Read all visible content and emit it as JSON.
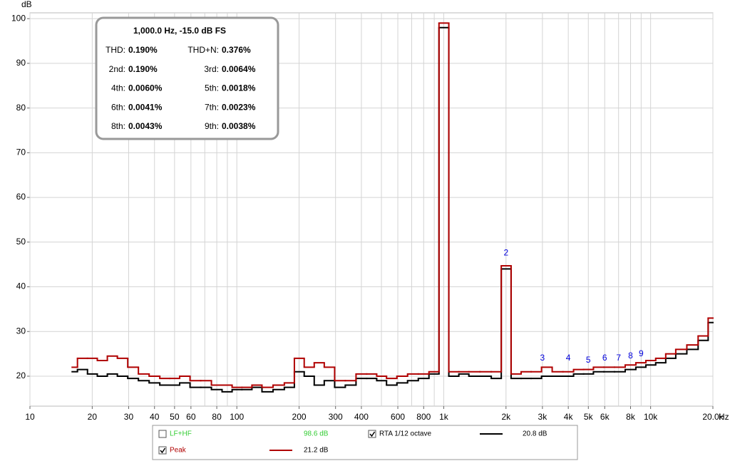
{
  "chart_data": {
    "type": "step",
    "ylabel": "dB",
    "xlabel": "Hz",
    "xscale": "log",
    "grid": true,
    "xlim": [
      10,
      20000
    ],
    "ylim": [
      13.3,
      101.3
    ],
    "yticks": [
      20,
      30,
      40,
      50,
      60,
      70,
      80,
      90,
      100
    ],
    "xticks": [
      10,
      20,
      30,
      40,
      50,
      60,
      80,
      100,
      200,
      300,
      400,
      600,
      800,
      {
        "value": 1000,
        "label": "1k"
      },
      {
        "value": 2000,
        "label": "2k"
      },
      {
        "value": 3000,
        "label": "3k"
      },
      {
        "value": 4000,
        "label": "4k"
      },
      {
        "value": 5000,
        "label": "5k"
      },
      {
        "value": 6000,
        "label": "6k"
      },
      {
        "value": 8000,
        "label": "8k"
      },
      {
        "value": 10000,
        "label": "10k"
      },
      {
        "value": 20000,
        "label": "20.0k"
      }
    ],
    "x_minor_grid": [
      70,
      90,
      500,
      700,
      900,
      7000,
      9000
    ],
    "x": [
      16,
      18,
      20,
      22.4,
      25,
      28,
      31.5,
      35.5,
      40,
      45,
      50,
      56,
      63,
      71,
      80,
      90,
      100,
      112,
      125,
      140,
      160,
      180,
      200,
      224,
      250,
      280,
      315,
      355,
      400,
      450,
      500,
      560,
      630,
      710,
      800,
      900,
      1000,
      1120,
      1250,
      1400,
      1600,
      1800,
      2000,
      2240,
      2500,
      2800,
      3150,
      3550,
      4000,
      4500,
      5000,
      5600,
      6300,
      7100,
      8000,
      9000,
      10000,
      11200,
      12500,
      14000,
      16000,
      18000,
      20000
    ],
    "series": [
      {
        "name": "RTA 1/12 octave",
        "color": "#000000",
        "checked": true,
        "readout": "20.8 dB",
        "values": [
          21,
          21.5,
          20.5,
          20,
          20.5,
          20,
          19.5,
          19,
          18.5,
          18,
          18,
          18.5,
          17.5,
          17.5,
          17,
          16.5,
          17,
          17,
          17.5,
          16.5,
          17,
          17.5,
          21,
          20,
          18,
          19,
          17.5,
          18,
          19.5,
          19.5,
          19,
          18,
          18.5,
          19,
          19.5,
          20.5,
          98,
          20,
          20.5,
          20,
          20,
          19.5,
          44,
          19.5,
          19.5,
          19.5,
          20,
          20,
          20,
          20.5,
          20.5,
          21,
          21,
          21,
          21.5,
          22,
          22.5,
          23,
          24,
          25,
          26,
          28,
          32
        ]
      },
      {
        "name": "Peak",
        "color": "#b00000",
        "checked": true,
        "readout": "21.2 dB",
        "values": [
          22,
          24,
          24,
          23.5,
          24.5,
          24,
          22,
          20.5,
          20,
          19.5,
          19.5,
          20,
          19,
          19,
          18,
          18,
          17.5,
          17.5,
          18,
          17.5,
          18,
          18.5,
          24,
          22,
          23,
          22,
          19,
          19,
          20.5,
          20.5,
          20,
          19.5,
          20,
          20.5,
          20.5,
          21,
          99,
          21,
          21,
          21,
          21,
          21,
          44.7,
          20.5,
          21,
          21,
          22,
          21,
          21,
          21.5,
          21.5,
          22,
          22,
          22,
          22.5,
          23,
          23.5,
          24,
          25,
          26,
          27,
          29,
          33
        ]
      }
    ],
    "legend_extra": {
      "name": "LF+HF",
      "color": "#33cc33",
      "checked": false,
      "readout": "98.6 dB"
    },
    "annotations": [
      {
        "text": "2",
        "x": 2000,
        "y": 47.5
      },
      {
        "text": "3",
        "x": 3000,
        "y": 24
      },
      {
        "text": "4",
        "x": 4000,
        "y": 24
      },
      {
        "text": "5",
        "x": 5000,
        "y": 23.5
      },
      {
        "text": "6",
        "x": 6000,
        "y": 24
      },
      {
        "text": "7",
        "x": 7000,
        "y": 24
      },
      {
        "text": "8",
        "x": 8000,
        "y": 24.5
      },
      {
        "text": "9",
        "x": 9000,
        "y": 25
      }
    ],
    "annotation_color": "#0000dd",
    "distortion_box": {
      "title": "1,000.0 Hz, -15.0 dB FS",
      "rows": [
        [
          "THD:",
          "0.190%",
          "THD+N:",
          "0.376%"
        ],
        [
          "2nd:",
          "0.190%",
          "3rd:",
          "0.0064%"
        ],
        [
          "4th:",
          "0.0060%",
          "5th:",
          "0.0018%"
        ],
        [
          "6th:",
          "0.0041%",
          "7th:",
          "0.0023%"
        ],
        [
          "8th:",
          "0.0043%",
          "9th:",
          "0.0038%"
        ]
      ]
    }
  }
}
